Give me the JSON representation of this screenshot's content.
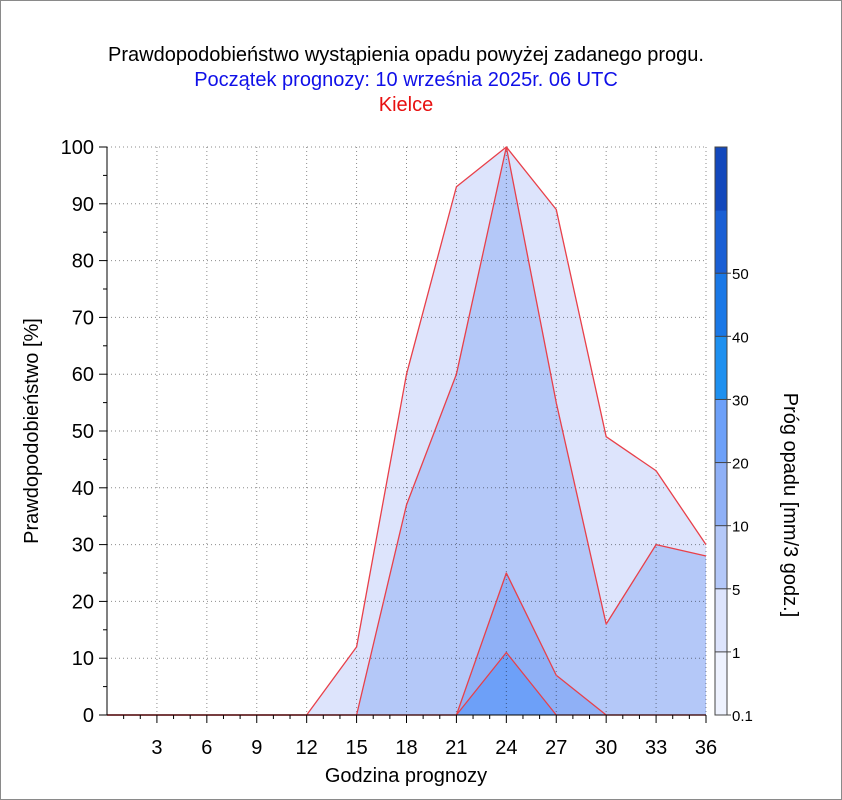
{
  "chart_data": {
    "type": "area",
    "title": "Prawdopodobieństwo wystąpienia opadu powyżej zadanego progu.",
    "subtitle": "Początek prognozy: 10 września 2025r. 06 UTC",
    "location": "Kielce",
    "xlabel": "Godzina prognozy",
    "ylabel": "Prawdopodobieństwo [%]",
    "colorbar_label": "Próg opadu [mm/3 godz.]",
    "xlim": [
      0,
      36
    ],
    "ylim": [
      0,
      100
    ],
    "x": [
      0,
      3,
      6,
      9,
      12,
      15,
      18,
      21,
      24,
      27,
      30,
      33,
      36
    ],
    "x_ticks": [
      3,
      6,
      9,
      12,
      15,
      18,
      21,
      24,
      27,
      30,
      33,
      36
    ],
    "y_ticks": [
      0,
      10,
      20,
      30,
      40,
      50,
      60,
      70,
      80,
      90,
      100
    ],
    "grid": true,
    "series": [
      {
        "threshold": "0.1",
        "color": "#dde4fc",
        "values": [
          0,
          0,
          0,
          0,
          0,
          12,
          60,
          93,
          100,
          89,
          49,
          43,
          30
        ]
      },
      {
        "threshold": "1",
        "color": "#b4c8f8",
        "values": [
          0,
          0,
          0,
          0,
          0,
          0,
          37,
          60,
          100,
          55,
          16,
          30,
          28
        ]
      },
      {
        "threshold": "5",
        "color": "#8fb0f6",
        "values": [
          0,
          0,
          0,
          0,
          0,
          0,
          0,
          0,
          25,
          7,
          0,
          0,
          0
        ]
      },
      {
        "threshold": "10",
        "color": "#6da0f8",
        "values": [
          0,
          0,
          0,
          0,
          0,
          0,
          0,
          0,
          11,
          0,
          0,
          0,
          0
        ]
      }
    ],
    "colorbar": {
      "tick_labels": [
        "0.1",
        "1",
        "5",
        "10",
        "20",
        "30",
        "40",
        "50"
      ],
      "bands": [
        "#eef2fe",
        "#dde4fc",
        "#b4c8f8",
        "#8fb0f6",
        "#6da0f8",
        "#1e90f0",
        "#1a78e6",
        "#1a5fd4",
        "#1348bc"
      ]
    }
  }
}
